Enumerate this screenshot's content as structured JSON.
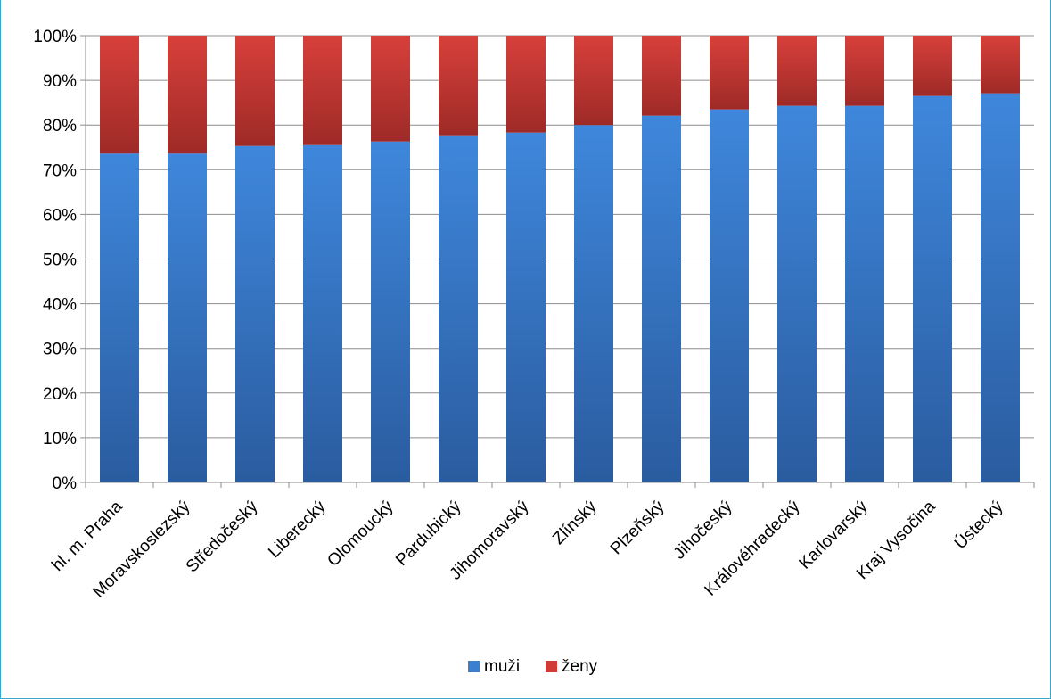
{
  "chart_data": {
    "type": "bar",
    "stacked": true,
    "percent": true,
    "title": "",
    "xlabel": "",
    "ylabel": "",
    "ylim": [
      0,
      100
    ],
    "ytick_labels": [
      "0%",
      "10%",
      "20%",
      "30%",
      "40%",
      "50%",
      "60%",
      "70%",
      "80%",
      "90%",
      "100%"
    ],
    "grid": true,
    "legend_position": "bottom",
    "categories": [
      "hl. m. Praha",
      "Moravskoslezský",
      "Středočeský",
      "Liberecký",
      "Olomoucký",
      "Pardubický",
      "Jihomoravský",
      "Zlínský",
      "Plzeňský",
      "Jihočeský",
      "Královéhradecký",
      "Karlovarský",
      "Kraj Vysočina",
      "Ústecký"
    ],
    "series": [
      {
        "name": "muži",
        "color": "#3a7fd0",
        "values": [
          73.6,
          73.6,
          75.3,
          75.5,
          76.3,
          77.7,
          78.3,
          80.0,
          82.1,
          83.5,
          84.3,
          84.3,
          86.5,
          87.1
        ]
      },
      {
        "name": "ženy",
        "color": "#d23a35",
        "values": [
          26.4,
          26.4,
          24.7,
          24.5,
          23.7,
          22.3,
          21.7,
          20.0,
          17.9,
          16.5,
          15.7,
          15.7,
          13.5,
          12.9
        ]
      }
    ]
  }
}
